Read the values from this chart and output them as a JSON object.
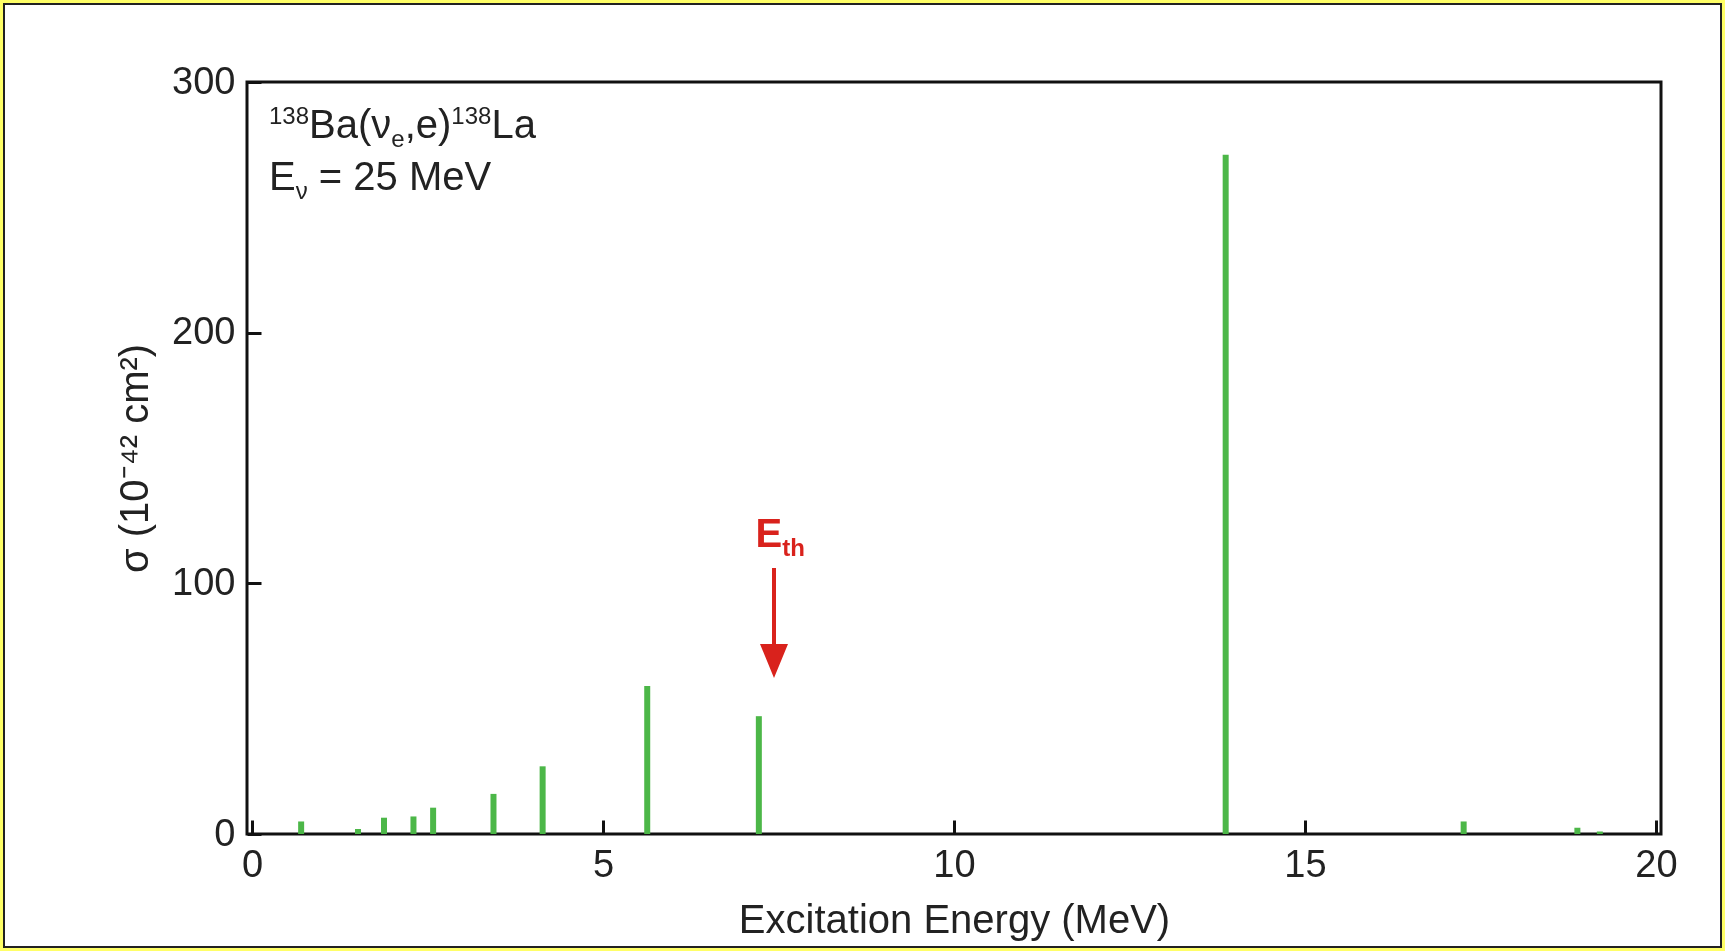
{
  "chart_data": {
    "type": "bar",
    "xlabel": "Excitation Energy (MeV)",
    "ylabel": "σ (10⁻⁴² cm²)",
    "x": [
      0.7,
      1.51,
      1.88,
      2.3,
      2.58,
      3.44,
      4.14,
      5.63,
      7.22,
      13.87,
      17.26,
      18.88,
      19.2
    ],
    "values": [
      5,
      2,
      6.5,
      7,
      10.5,
      16,
      27,
      59,
      47,
      271,
      5,
      2.5,
      1
    ],
    "color": "#4cb748",
    "xlim": [
      0,
      20
    ],
    "xticks": [
      0,
      5,
      10,
      15,
      20
    ],
    "ylim": [
      0,
      300
    ],
    "yticks": [
      0,
      100,
      200,
      300
    ],
    "grid": false,
    "annotations": [
      "$^{138}$Ba(ν$_{e}$,e)$^{138}$La",
      "E$_{ν}$ = 25 MeV",
      "E$_{th}$"
    ]
  }
}
